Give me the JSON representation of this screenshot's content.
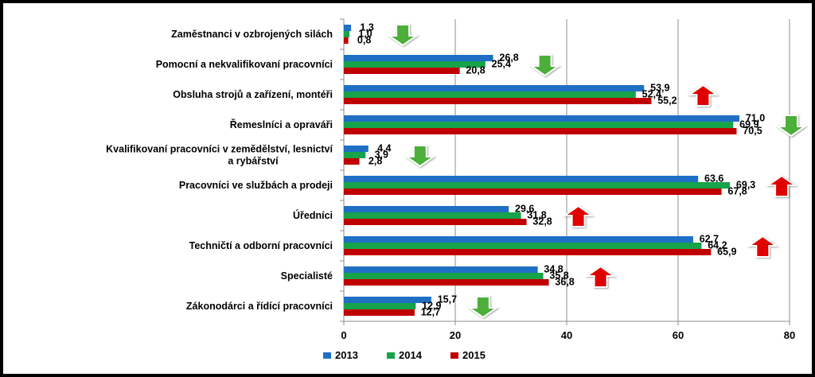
{
  "chart_data": {
    "type": "bar",
    "orientation": "horizontal",
    "categories": [
      "Zaměstnanci v ozbrojených silách",
      "Pomocní a nekvalifikovaní pracovníci",
      "Obsluha strojů a zařízení, montéři",
      "Řemeslníci a opraváři",
      "Kvalifikovaní pracovníci v zemědělství, lesnictví a rybářství",
      "Pracovníci ve službách a prodeji",
      "Úředníci",
      "Techničtí a odborní pracovníci",
      "Specialisté",
      "Zákonodárci a řídící pracovníci"
    ],
    "category_lines": [
      [
        "Zaměstnanci v ozbrojených silách"
      ],
      [
        "Pomocní a nekvalifikovaní pracovníci"
      ],
      [
        "Obsluha strojů a zařízení, montéři"
      ],
      [
        "Řemeslníci a opraváři"
      ],
      [
        "Kvalifikovaní pracovníci v zemědělství, lesnictví",
        "a rybářství"
      ],
      [
        "Pracovníci ve službách a prodeji"
      ],
      [
        "Úředníci"
      ],
      [
        "Techničtí a odborní pracovníci"
      ],
      [
        "Specialisté"
      ],
      [
        "Zákonodárci a řídící pracovníci"
      ]
    ],
    "series": [
      {
        "name": "2013",
        "color": "#1f6fc5",
        "values": [
          1.3,
          26.8,
          53.9,
          71.0,
          4.4,
          63.6,
          29.6,
          62.7,
          34.8,
          15.7
        ],
        "labels": [
          "1,3",
          "26,8",
          "53,9",
          "71,0",
          "4,4",
          "63,6",
          "29,6",
          "62,7",
          "34,8",
          "15,7"
        ]
      },
      {
        "name": "2014",
        "color": "#16a34a",
        "values": [
          1.0,
          25.4,
          52.4,
          69.9,
          3.9,
          69.3,
          31.8,
          64.2,
          35.8,
          12.9
        ],
        "labels": [
          "1,0",
          "25,4",
          "52,4",
          "69,9",
          "3,9",
          "69,3",
          "31,8",
          "64,2",
          "35,8",
          "12,9"
        ]
      },
      {
        "name": "2015",
        "color": "#c00000",
        "values": [
          0.8,
          20.8,
          55.2,
          70.5,
          2.8,
          67.8,
          32.8,
          65.9,
          36.8,
          12.7
        ],
        "labels": [
          "0,8",
          "20,8",
          "55,2",
          "70,5",
          "2,8",
          "67,8",
          "32,8",
          "65,9",
          "36,8",
          "12,7"
        ]
      }
    ],
    "trend_arrows": [
      "down",
      "down",
      "up",
      "down",
      "down",
      "up",
      "up",
      "up",
      "up",
      "down"
    ],
    "arrow_colors": {
      "up": "#e00000",
      "down": "#4caf3a"
    },
    "xlim": [
      0,
      80
    ],
    "xticks": [
      0,
      20,
      40,
      60,
      80
    ],
    "grid": true,
    "legend_position": "bottom"
  }
}
